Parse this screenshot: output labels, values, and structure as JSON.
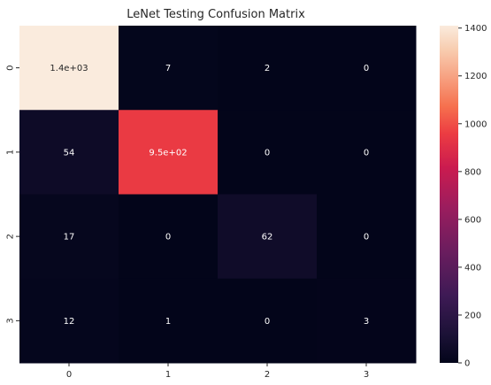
{
  "chart_data": {
    "type": "heatmap",
    "title": "LeNet Testing Confusion Matrix",
    "xlabel": "",
    "ylabel": "",
    "x_categories": [
      "0",
      "1",
      "2",
      "3"
    ],
    "y_categories": [
      "0",
      "1",
      "2",
      "3"
    ],
    "values": [
      [
        1410,
        7,
        2,
        0
      ],
      [
        54,
        950,
        0,
        0
      ],
      [
        17,
        0,
        62,
        0
      ],
      [
        12,
        1,
        0,
        3
      ]
    ],
    "cell_labels": [
      [
        "1.4e+03",
        "7",
        "2",
        "0"
      ],
      [
        "54",
        "9.5e+02",
        "0",
        "0"
      ],
      [
        "17",
        "0",
        "62",
        "0"
      ],
      [
        "12",
        "1",
        "0",
        "3"
      ]
    ],
    "colorbar": {
      "range": [
        0,
        1410
      ],
      "ticks": [
        0,
        200,
        400,
        600,
        800,
        1000,
        1200,
        1400
      ],
      "tick_labels": [
        "0",
        "200",
        "400",
        "600",
        "800",
        "1000",
        "1200",
        "1400"
      ],
      "colormap": "rocket"
    },
    "grid": false
  }
}
